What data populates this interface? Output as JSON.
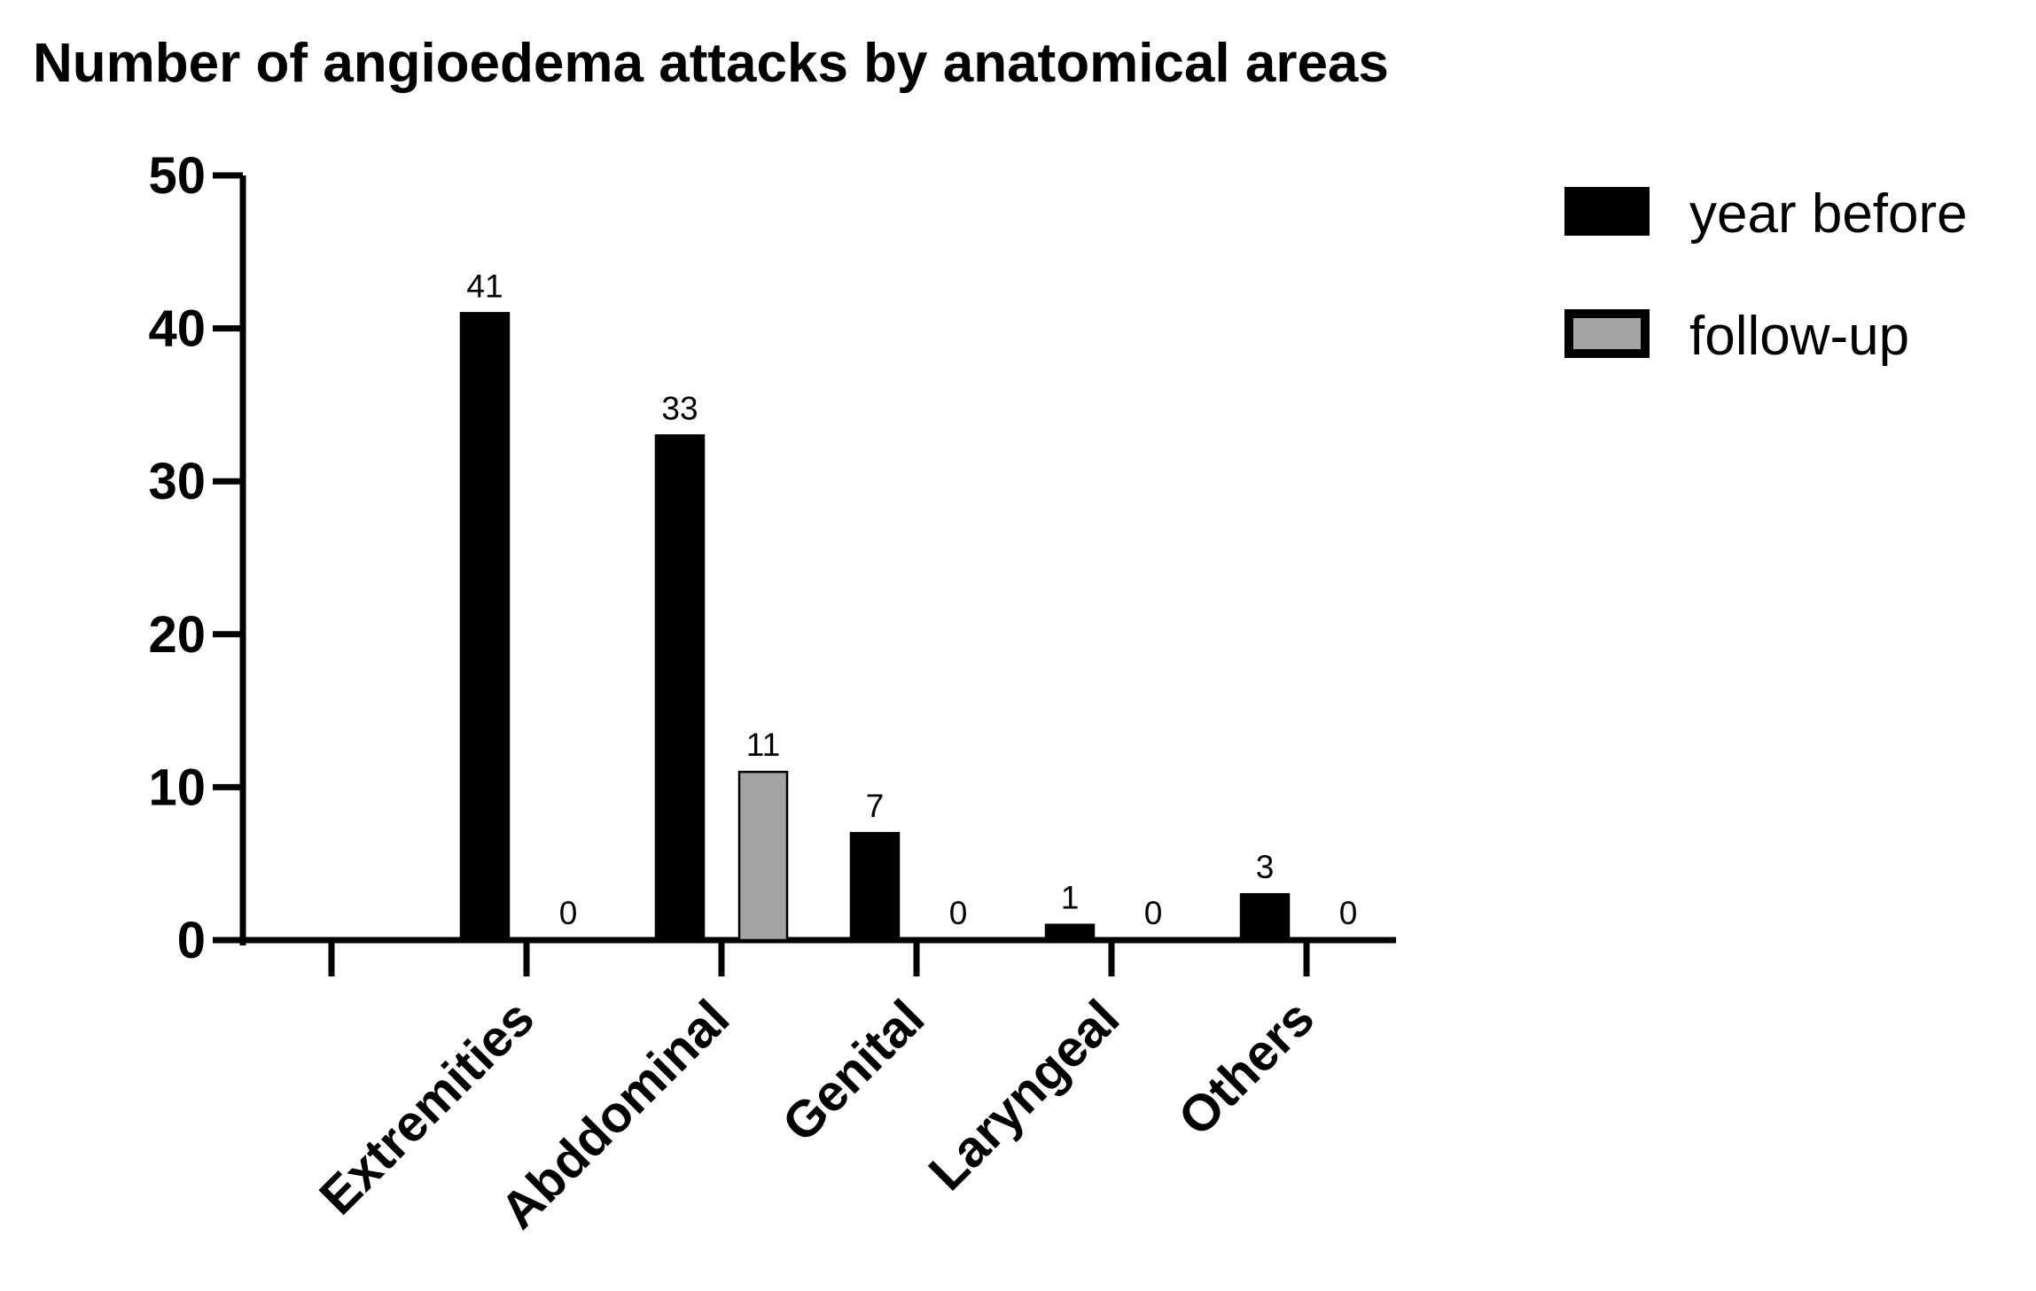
{
  "chart_data": {
    "type": "bar",
    "title": "Number of angioedema attacks by anatomical areas",
    "xlabel": "",
    "ylabel": "",
    "categories": [
      "Extremities",
      "Abddominal",
      "Genital",
      "Laryngeal",
      "Others"
    ],
    "series": [
      {
        "name": "year before",
        "values": [
          41,
          33,
          7,
          1,
          3
        ],
        "labels": [
          "41",
          "33",
          "7",
          "1",
          "3"
        ],
        "color": "#000000"
      },
      {
        "name": "follow-up",
        "values": [
          0,
          11,
          0,
          0,
          0
        ],
        "labels": [
          "0",
          "11",
          "0",
          "0",
          "0"
        ],
        "color": "#a3a3a6"
      }
    ],
    "ylim": [
      0,
      50
    ],
    "yticks": [
      0,
      10,
      20,
      30,
      40,
      50
    ],
    "ytick_labels": [
      "0",
      "10",
      "20",
      "30",
      "40",
      "50"
    ],
    "grid": false,
    "legend_position": "top-right",
    "xtick_label_rotation": "-45deg"
  }
}
